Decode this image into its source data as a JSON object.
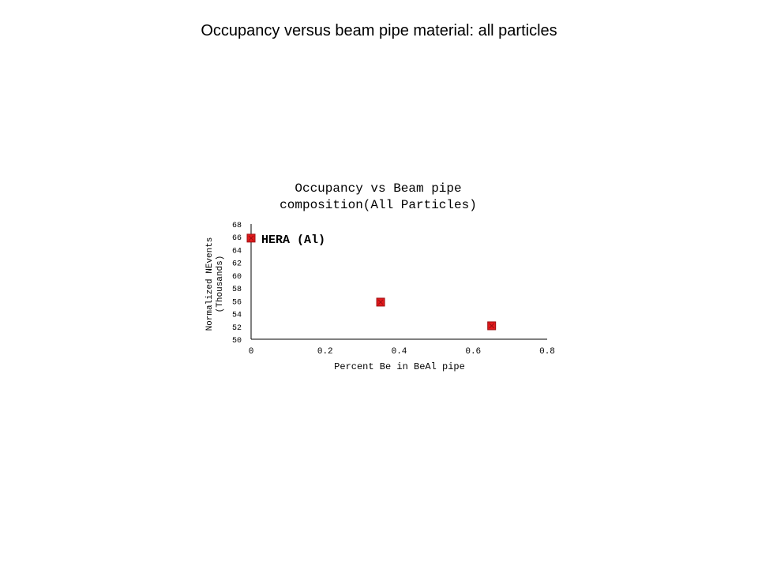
{
  "slide": {
    "title": "Occupancy versus beam pipe material: all particles"
  },
  "chart_data": {
    "type": "scatter",
    "title_lines": [
      "Occupancy vs Beam pipe",
      "composition(All Particles)"
    ],
    "xlabel": "Percent Be in BeAl pipe",
    "ylabel_lines": [
      "Normalized NEvents",
      "(Thousands)"
    ],
    "xlim": [
      0,
      0.8
    ],
    "ylim": [
      50,
      68
    ],
    "xticks": [
      "0",
      "0.2",
      "0.4",
      "0.6",
      "0.8"
    ],
    "yticks": [
      "50",
      "52",
      "54",
      "56",
      "58",
      "60",
      "62",
      "64",
      "66",
      "68"
    ],
    "series": [
      {
        "points": [
          {
            "x": 0,
            "y": 65.8
          },
          {
            "x": 0.35,
            "y": 55.8
          },
          {
            "x": 0.65,
            "y": 52.1
          }
        ]
      }
    ],
    "annotations": [
      {
        "text": "HERA (Al)",
        "x": 0,
        "y": 65.8
      }
    ],
    "marker_color": "#e31a1c",
    "marker_outline": "#9b0f12",
    "grid": false,
    "legend": "none"
  }
}
